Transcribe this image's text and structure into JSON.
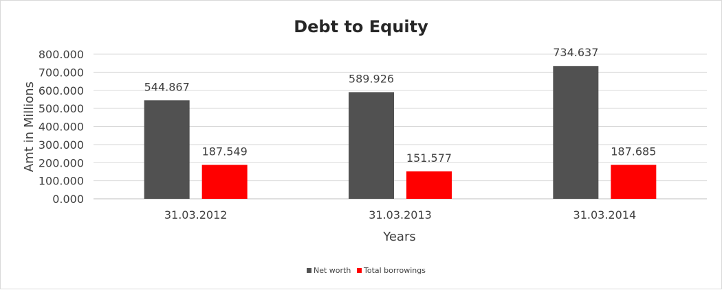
{
  "chart_data": {
    "type": "bar",
    "title": "Debt to Equity",
    "xlabel": "Years",
    "ylabel": "Amt in Millions",
    "categories": [
      "31.03.2012",
      "31.03.2013",
      "31.03.2014"
    ],
    "series": [
      {
        "name": "Net worth",
        "values": [
          544.867,
          589.926,
          734.637
        ],
        "color": "#515151"
      },
      {
        "name": "Total borrowings",
        "values": [
          187.549,
          151.577,
          187.685
        ],
        "color": "#ff0000"
      }
    ],
    "ylim": [
      0,
      800
    ],
    "yticks": [
      "0.000",
      "100.000",
      "200.000",
      "300.000",
      "400.000",
      "500.000",
      "600.000",
      "700.000",
      "800.000"
    ],
    "data_labels": [
      [
        "544.867",
        "589.926",
        "734.637"
      ],
      [
        "187.549",
        "151.577",
        "187.685"
      ]
    ],
    "grid": true,
    "legend_position": "bottom"
  }
}
